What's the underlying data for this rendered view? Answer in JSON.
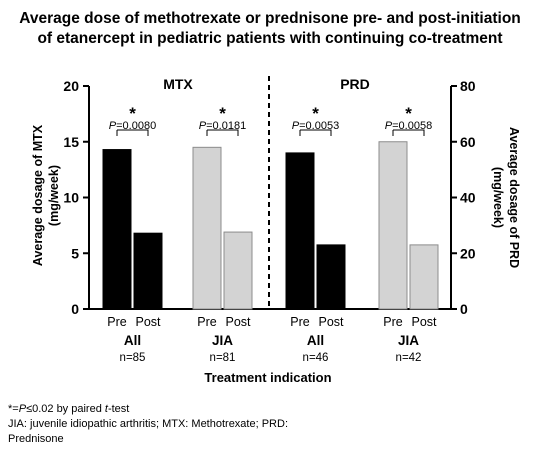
{
  "title_line1": "Average dose of methotrexate or prednisone pre- and post-initiation",
  "title_line2": "of etanercept in pediatric patients with continuing co-treatment",
  "chart_data": {
    "type": "bar",
    "panels": [
      {
        "label": "MTX",
        "axis": "left",
        "groups": [
          {
            "name": "All",
            "n": "n=85",
            "color": "#000000",
            "values": [
              14.3,
              6.8
            ],
            "p_value": "=0.0080"
          },
          {
            "name": "JIA",
            "n": "n=81",
            "color": "#d3d3d3",
            "values": [
              14.5,
              6.9
            ],
            "p_value": "=0.0181"
          }
        ]
      },
      {
        "label": "PRD",
        "axis": "right",
        "groups": [
          {
            "name": "All",
            "n": "n=46",
            "color": "#000000",
            "values": [
              56,
              23
            ],
            "p_value": "=0.0053"
          },
          {
            "name": "JIA",
            "n": "n=42",
            "color": "#d3d3d3",
            "values": [
              60,
              23
            ],
            "p_value": "=0.0058"
          }
        ]
      }
    ],
    "bar_labels": [
      "Pre",
      "Post"
    ],
    "left_axis": {
      "label": "Average dosage of MTX (mg/week)",
      "ylim": [
        0,
        20
      ],
      "ticks": [
        "0",
        "5",
        "10",
        "15",
        "20"
      ]
    },
    "right_axis": {
      "label": "Average dosage of PRD (mg/week)",
      "ylim": [
        0,
        80
      ],
      "ticks": [
        "0",
        "20",
        "40",
        "60",
        "80"
      ]
    },
    "xlabel": "Treatment indication",
    "significance_mark": "*",
    "p_symbol": "P"
  },
  "footnote": {
    "line1_prefix": "*=",
    "line1_p": "P",
    "line1_mid": "≤0.02 by paired ",
    "line1_t": "t",
    "line1_suffix": "-test",
    "line2": "JIA: juvenile idiopathic arthritis; MTX: Methotrexate; PRD:",
    "line3": "Prednisone"
  }
}
